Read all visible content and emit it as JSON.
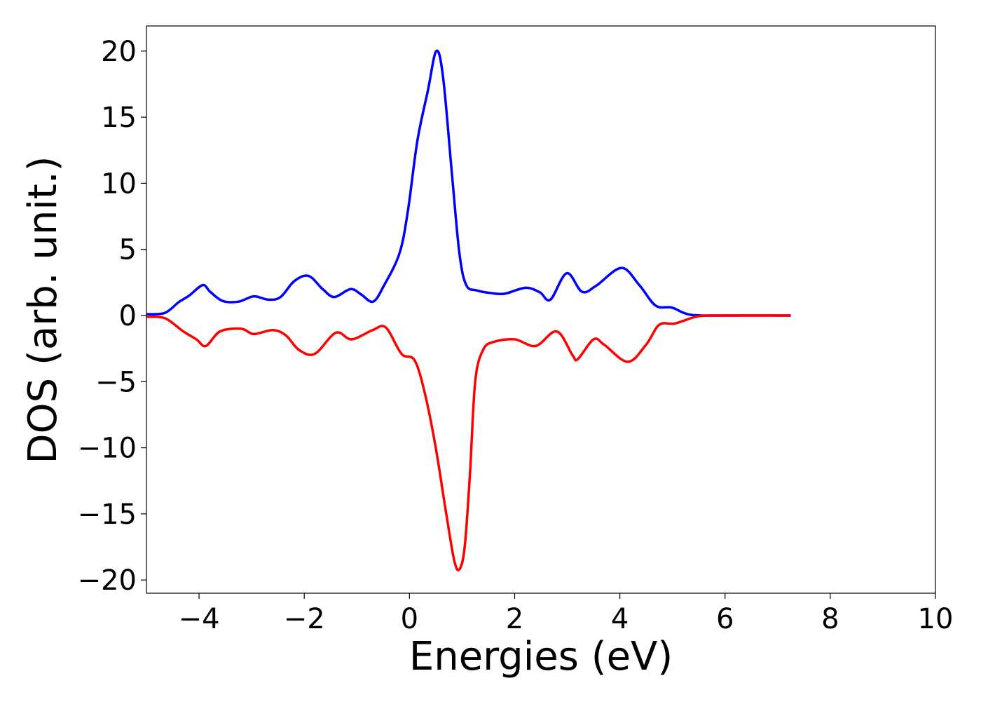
{
  "chart_data": {
    "type": "line",
    "title": "",
    "xlabel": "Energies (eV)",
    "ylabel": "DOS (arb. unit.)",
    "xlim": [
      -5,
      10
    ],
    "ylim": [
      -21,
      21.9
    ],
    "xticks": [
      -4,
      -2,
      0,
      2,
      4,
      6,
      8,
      10
    ],
    "xtick_labels": [
      "−4",
      "−2",
      "0",
      "2",
      "4",
      "6",
      "8",
      "10"
    ],
    "yticks": [
      -20,
      -15,
      -10,
      -5,
      0,
      5,
      10,
      15,
      20
    ],
    "ytick_labels": [
      "−20",
      "−15",
      "−10",
      "−5",
      "0",
      "5",
      "10",
      "15",
      "20"
    ],
    "grid": false,
    "legend": "none",
    "series": [
      {
        "color": "#0000ff",
        "x": [
          -5,
          -4.65,
          -4.39,
          -4.19,
          -3.93,
          -3.79,
          -3.55,
          -3.25,
          -2.96,
          -2.68,
          -2.45,
          -2.19,
          -1.92,
          -1.65,
          -1.43,
          -1.12,
          -0.92,
          -0.69,
          -0.48,
          -0.19,
          -0.03,
          0.15,
          0.35,
          0.51,
          0.64,
          0.81,
          0.95,
          1.08,
          1.28,
          1.55,
          1.81,
          2.21,
          2.48,
          2.68,
          2.99,
          3.28,
          3.55,
          4.03,
          4.37,
          4.68,
          4.99,
          5.35,
          6.0,
          7.25
        ],
        "y": [
          0.1,
          0.2,
          1.0,
          1.5,
          2.3,
          1.8,
          1.1,
          1.05,
          1.45,
          1.2,
          1.4,
          2.6,
          3.0,
          2.0,
          1.4,
          2.0,
          1.6,
          1.05,
          2.3,
          4.7,
          7.9,
          13.2,
          17,
          20,
          18,
          10.6,
          4.7,
          2.3,
          1.9,
          1.7,
          1.65,
          2.1,
          1.75,
          1.2,
          3.2,
          1.8,
          2.25,
          3.6,
          2.3,
          0.75,
          0.6,
          0.05,
          0,
          0
        ]
      },
      {
        "color": "#ff0000",
        "x": [
          -5,
          -4.65,
          -4.3,
          -4.05,
          -3.87,
          -3.6,
          -3.2,
          -2.96,
          -2.6,
          -2.35,
          -2.1,
          -1.8,
          -1.4,
          -1.1,
          -0.7,
          -0.45,
          -0.15,
          0.1,
          0.3,
          0.5,
          0.7,
          0.85,
          0.95,
          1.05,
          1.15,
          1.25,
          1.4,
          1.6,
          2.0,
          2.4,
          2.8,
          3.1,
          3.2,
          3.5,
          3.7,
          4.15,
          4.5,
          4.75,
          5.05,
          5.5,
          6.0,
          7.25
        ],
        "y": [
          -0.1,
          -0.2,
          -1.2,
          -1.8,
          -2.3,
          -1.2,
          -1.0,
          -1.4,
          -1.1,
          -1.5,
          -2.6,
          -2.9,
          -1.3,
          -1.8,
          -1.1,
          -0.9,
          -2.9,
          -3.4,
          -6,
          -10,
          -15,
          -18.5,
          -19.2,
          -17.5,
          -12,
          -5,
          -2.6,
          -2.0,
          -1.8,
          -2.3,
          -1.2,
          -3.0,
          -3.3,
          -1.8,
          -2.2,
          -3.5,
          -2.2,
          -0.7,
          -0.6,
          -0.05,
          0,
          0
        ]
      }
    ]
  }
}
